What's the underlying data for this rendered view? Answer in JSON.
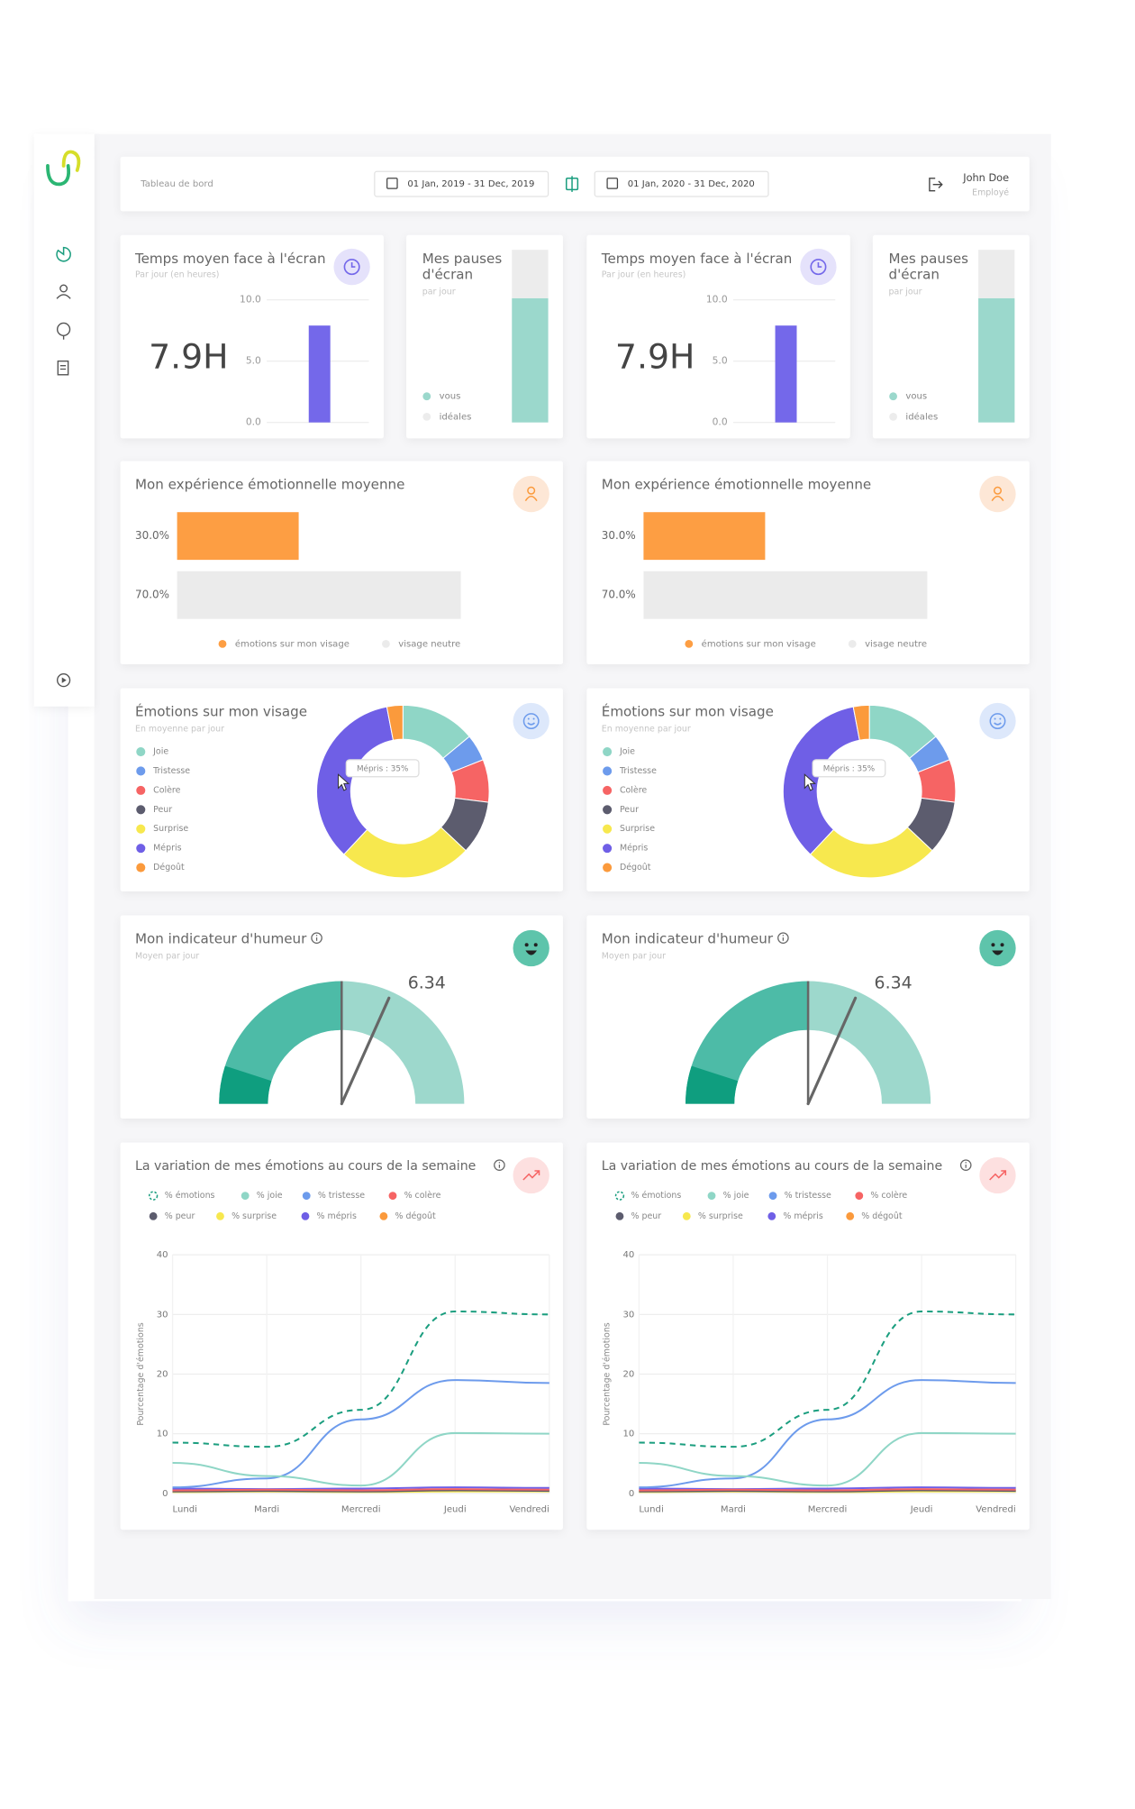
{
  "header": {
    "title": "Tableau de bord",
    "range1": "01 Jan, 2019 - 31 Dec, 2019",
    "range2": "01 Jan, 2020 - 31 Dec, 2020",
    "user": "John Doe",
    "role": "Employé"
  },
  "panels": [
    {
      "screen_time": {
        "title": "Temps moyen face à l'écran",
        "subtitle": "Par jour (en heures)",
        "value_text": "7.9H",
        "chart_data": {
          "type": "bar",
          "values": [
            7.9
          ],
          "color": "#7468ea",
          "ylim": [
            0,
            10
          ],
          "yticks": [
            {
              "value": 0,
              "label": "0.0"
            },
            {
              "value": 5,
              "label": "5.0"
            },
            {
              "value": 10,
              "label": "10.0"
            }
          ],
          "grid": true
        }
      },
      "breaks": {
        "title_lines": [
          "Mes pauses",
          "d'écran"
        ],
        "subtitle": "par jour",
        "chart_data": {
          "type": "bar",
          "stacked": true,
          "ylim": [
            0,
            100
          ],
          "series": [
            {
              "name": "vous",
              "color": "#9bd8cc",
              "values": [
                72
              ]
            },
            {
              "name": "idéales",
              "color": "#ececec",
              "values": [
                28
              ]
            }
          ]
        }
      },
      "experience": {
        "title": "Mon expérience émotionnelle moyenne",
        "chart_data": {
          "type": "bar",
          "horizontal": true,
          "categories": [
            "émotions sur mon visage",
            "visage neutre"
          ],
          "values": [
            30,
            70
          ],
          "value_labels": [
            "30.0%",
            "70.0%"
          ],
          "colors": [
            "#fd9e43",
            "#ebebeb"
          ],
          "xlim": [
            0,
            70
          ]
        }
      },
      "emotions": {
        "title": "Émotions sur mon visage",
        "subtitle": "En moyenne par jour",
        "tooltip": "Mépris : 35%",
        "chart_data": {
          "type": "pie",
          "donut": true,
          "categories": [
            "Joie",
            "Tristesse",
            "Colère",
            "Peur",
            "Surprise",
            "Mépris",
            "Dégoût"
          ],
          "values": [
            14,
            5,
            8,
            10,
            25,
            35,
            3
          ],
          "colors": [
            "#8fd6c6",
            "#6d9bec",
            "#f66464",
            "#5c5c6e",
            "#f7e84e",
            "#6f5fe6",
            "#fb9a3c"
          ]
        }
      },
      "mood": {
        "title": "Mon indicateur d'humeur",
        "subtitle": "Moyen par jour",
        "chart_data": {
          "type": "gauge",
          "value": 6.34,
          "range": [
            0,
            10
          ]
        }
      },
      "weekly": {
        "title": "La variation de mes émotions au cours de la semaine",
        "chart_data": {
          "type": "line",
          "categories": [
            "Lundi",
            "Mardi",
            "Mercredi",
            "Jeudi",
            "Vendredi"
          ],
          "ylabel": "Pourcentage d'émotions",
          "ylim": [
            0,
            40
          ],
          "yticks": [
            0,
            10,
            20,
            30,
            40
          ],
          "grid": true,
          "series": [
            {
              "name": "% émotions",
              "color": "#1b9e7f",
              "dashed": true,
              "values": [
                8.5,
                7.8,
                14,
                30.5,
                30
              ]
            },
            {
              "name": "% joie",
              "color": "#8fd6c6",
              "values": [
                5.1,
                2.9,
                1.3,
                10.1,
                10
              ]
            },
            {
              "name": "% tristesse",
              "color": "#6d9bec",
              "values": [
                1,
                2.5,
                12.4,
                19,
                18.5
              ]
            },
            {
              "name": "% colère",
              "color": "#f66464",
              "values": [
                0.5,
                0.6,
                0.5,
                0.7,
                0.6
              ]
            },
            {
              "name": "% peur",
              "color": "#5c5c6e",
              "values": [
                0.3,
                0.4,
                0.3,
                0.5,
                0.4
              ]
            },
            {
              "name": "% surprise",
              "color": "#f7e84e",
              "values": [
                0.2,
                0.3,
                0.2,
                0.3,
                0.3
              ]
            },
            {
              "name": "% mépris",
              "color": "#6f5fe6",
              "values": [
                0.8,
                0.7,
                0.8,
                1,
                0.9
              ]
            },
            {
              "name": "% dégoût",
              "color": "#fb9a3c",
              "values": [
                0.4,
                0.3,
                0.4,
                0.4,
                0.5
              ]
            }
          ]
        }
      }
    },
    {
      "screen_time": {
        "title": "Temps moyen face à l'écran",
        "subtitle": "Par jour (en heures)",
        "value_text": "7.9H",
        "chart_data": {
          "type": "bar",
          "values": [
            7.9
          ],
          "color": "#7468ea",
          "ylim": [
            0,
            10
          ],
          "yticks": [
            {
              "value": 0,
              "label": "0.0"
            },
            {
              "value": 5,
              "label": "5.0"
            },
            {
              "value": 10,
              "label": "10.0"
            }
          ],
          "grid": true
        }
      },
      "breaks": {
        "title_lines": [
          "Mes pauses",
          "d'écran"
        ],
        "subtitle": "par jour",
        "chart_data": {
          "type": "bar",
          "stacked": true,
          "ylim": [
            0,
            100
          ],
          "series": [
            {
              "name": "vous",
              "color": "#9bd8cc",
              "values": [
                72
              ]
            },
            {
              "name": "idéales",
              "color": "#ececec",
              "values": [
                28
              ]
            }
          ]
        }
      },
      "experience": {
        "title": "Mon expérience émotionnelle moyenne",
        "chart_data": {
          "type": "bar",
          "horizontal": true,
          "categories": [
            "émotions sur mon visage",
            "visage neutre"
          ],
          "values": [
            30,
            70
          ],
          "value_labels": [
            "30.0%",
            "70.0%"
          ],
          "colors": [
            "#fd9e43",
            "#ebebeb"
          ],
          "xlim": [
            0,
            70
          ]
        }
      },
      "emotions": {
        "title": "Émotions sur mon visage",
        "subtitle": "En moyenne par jour",
        "tooltip": "Mépris : 35%",
        "chart_data": {
          "type": "pie",
          "donut": true,
          "categories": [
            "Joie",
            "Tristesse",
            "Colère",
            "Peur",
            "Surprise",
            "Mépris",
            "Dégoût"
          ],
          "values": [
            14,
            5,
            8,
            10,
            25,
            35,
            3
          ],
          "colors": [
            "#8fd6c6",
            "#6d9bec",
            "#f66464",
            "#5c5c6e",
            "#f7e84e",
            "#6f5fe6",
            "#fb9a3c"
          ]
        }
      },
      "mood": {
        "title": "Mon indicateur d'humeur",
        "subtitle": "Moyen par jour",
        "chart_data": {
          "type": "gauge",
          "value": 6.34,
          "range": [
            0,
            10
          ]
        }
      },
      "weekly": {
        "title": "La variation de mes émotions au cours de la semaine",
        "chart_data": {
          "type": "line",
          "categories": [
            "Lundi",
            "Mardi",
            "Mercredi",
            "Jeudi",
            "Vendredi"
          ],
          "ylabel": "Pourcentage d'émotions",
          "ylim": [
            0,
            40
          ],
          "yticks": [
            0,
            10,
            20,
            30,
            40
          ],
          "grid": true,
          "series": [
            {
              "name": "% émotions",
              "color": "#1b9e7f",
              "dashed": true,
              "values": [
                8.5,
                7.8,
                14,
                30.5,
                30
              ]
            },
            {
              "name": "% joie",
              "color": "#8fd6c6",
              "values": [
                5.1,
                2.9,
                1.3,
                10.1,
                10
              ]
            },
            {
              "name": "% tristesse",
              "color": "#6d9bec",
              "values": [
                1,
                2.5,
                12.4,
                19,
                18.5
              ]
            },
            {
              "name": "% colère",
              "color": "#f66464",
              "values": [
                0.5,
                0.6,
                0.5,
                0.7,
                0.6
              ]
            },
            {
              "name": "% peur",
              "color": "#5c5c6e",
              "values": [
                0.3,
                0.4,
                0.3,
                0.5,
                0.4
              ]
            },
            {
              "name": "% surprise",
              "color": "#f7e84e",
              "values": [
                0.2,
                0.3,
                0.2,
                0.3,
                0.3
              ]
            },
            {
              "name": "% mépris",
              "color": "#6f5fe6",
              "values": [
                0.8,
                0.7,
                0.8,
                1,
                0.9
              ]
            },
            {
              "name": "% dégoût",
              "color": "#fb9a3c",
              "values": [
                0.4,
                0.3,
                0.4,
                0.4,
                0.5
              ]
            }
          ]
        }
      }
    }
  ]
}
